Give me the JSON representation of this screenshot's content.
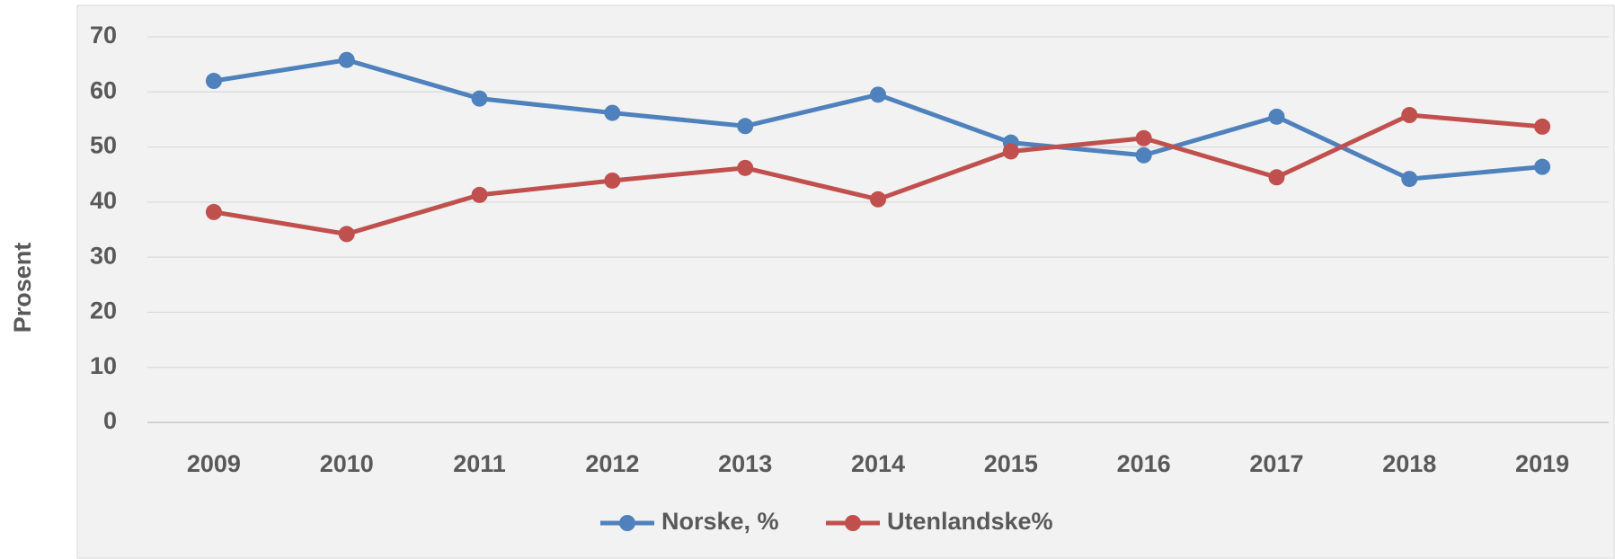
{
  "chart_data": {
    "type": "line",
    "y_label": "Prosent",
    "categories": [
      "2009",
      "2010",
      "2011",
      "2012",
      "2013",
      "2014",
      "2015",
      "2016",
      "2017",
      "2018",
      "2019"
    ],
    "series": [
      {
        "name": "Norske, %",
        "color": "#4f81bd",
        "values": [
          62,
          65.8,
          58.8,
          56.2,
          53.8,
          59.5,
          50.8,
          48.5,
          55.5,
          44.2,
          46.4
        ]
      },
      {
        "name": "Utenlandske%",
        "color": "#c0504d",
        "values": [
          38.2,
          34.2,
          41.3,
          43.9,
          46.2,
          40.5,
          49.2,
          51.6,
          44.5,
          55.8,
          53.7
        ]
      }
    ],
    "ylim": [
      0,
      70
    ],
    "yticks": [
      0,
      10,
      20,
      30,
      40,
      50,
      60,
      70
    ],
    "grid": true,
    "legend": "bottom"
  }
}
